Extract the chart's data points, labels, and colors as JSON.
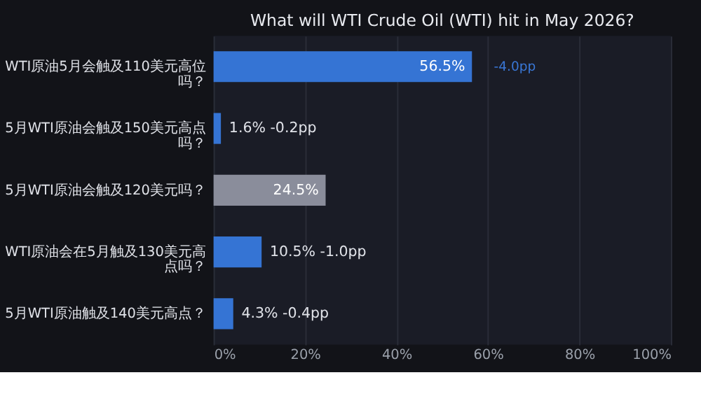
{
  "chart_data": {
    "type": "bar",
    "orientation": "horizontal",
    "title": "What will WTI Crude Oil (WTI) hit in May 2026?",
    "categories": [
      "WTI原油5月会触及110美元高位吗？",
      "5月WTI原油会触及150美元高点吗？",
      "5月WTI原油会触及120美元吗？",
      "WTI原油会在5月触及130美元高点吗？",
      "5月WTI原油触及140美元高点？"
    ],
    "values": [
      56.5,
      1.6,
      24.5,
      10.5,
      4.3
    ],
    "colors": [
      "#3574d4",
      "#3574d4",
      "#8a8d9b",
      "#3574d4",
      "#3574d4"
    ],
    "value_labels": [
      "56.5%",
      "1.6% -0.2pp",
      "24.5%",
      "10.5% -1.0pp",
      "4.3% -0.4pp"
    ],
    "annotations": [
      {
        "text": "-4.0pp",
        "x": 56.5,
        "y": "WTI原油5月会触及110美元高位吗？"
      }
    ],
    "xlim": [
      0,
      100
    ],
    "xticks": [
      {
        "value": 0,
        "label": "0%"
      },
      {
        "value": 20,
        "label": "20%"
      },
      {
        "value": 40,
        "label": "40%"
      },
      {
        "value": 60,
        "label": "60%"
      },
      {
        "value": 80,
        "label": "80%"
      },
      {
        "value": 100,
        "label": "100%"
      }
    ],
    "grid": "x"
  }
}
